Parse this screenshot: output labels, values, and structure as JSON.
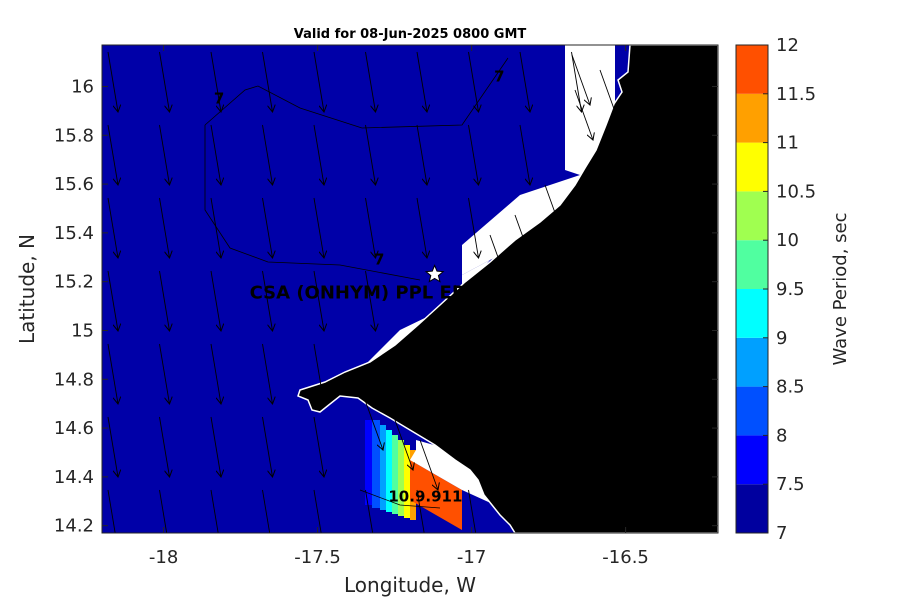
{
  "chart_data": {
    "type": "heatmap",
    "title": "Valid for 08-Jun-2025 0800 GMT",
    "xlabel": "Longitude, W",
    "ylabel": "Latitude, N",
    "xlim": [
      -18.2,
      -16.2
    ],
    "ylim": [
      14.17,
      16.17
    ],
    "xticks": [
      -18,
      -17.5,
      -17,
      -16.5
    ],
    "xtick_labels": [
      "-18",
      "-17.5",
      "-17",
      "-16.5"
    ],
    "yticks": [
      14.2,
      14.4,
      14.6,
      14.8,
      15,
      15.2,
      15.4,
      15.6,
      15.8,
      16
    ],
    "ytick_labels": [
      "14.2",
      "14.4",
      "14.6",
      "14.8",
      "15",
      "15.2",
      "15.4",
      "15.6",
      "15.8",
      "16"
    ],
    "colorbar": {
      "label": "Wave Period, sec",
      "levels": [
        7,
        7.5,
        8,
        8.5,
        9,
        9.5,
        10,
        10.5,
        11,
        11.5,
        12
      ],
      "level_labels": [
        "7",
        "7.5",
        "8",
        "8.5",
        "9",
        "9.5",
        "10",
        "10.5",
        "11",
        "11.5",
        "12"
      ],
      "colors": [
        "#00009f",
        "#0000ff",
        "#0050ff",
        "#00a0ff",
        "#00ffff",
        "#50ffa0",
        "#a0ff50",
        "#ffff00",
        "#ffa000",
        "#ff5000"
      ]
    },
    "field": {
      "offshore_value": 7,
      "max_value": 12
    },
    "colors": {
      "land": "#000000",
      "no_data": "#ffffff",
      "water_dominant": "#0000a8"
    },
    "site": {
      "label": "CSA (ONHYM) PPL EP",
      "lon": -17.12,
      "lat": 15.23,
      "marker": "white-star"
    },
    "contour_labels": [
      {
        "text": "7",
        "lon": -17.82,
        "lat": 15.93
      },
      {
        "text": "7",
        "lon": -17.3,
        "lat": 15.27
      },
      {
        "text": "7",
        "lon": -16.91,
        "lat": 16.02
      },
      {
        "text": "10.9.911",
        "lon": -17.15,
        "lat": 14.3
      }
    ],
    "grid": false
  }
}
